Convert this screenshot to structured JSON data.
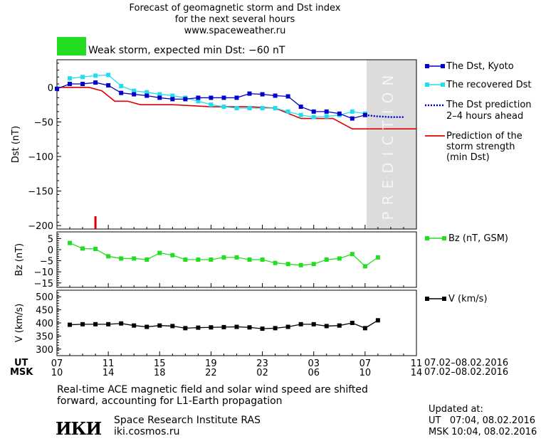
{
  "header": {
    "title_line1": "Forecast of geomagnetic storm and Dst index",
    "title_line2": "for the next several hours",
    "website": "www.spaceweather.ru",
    "storm_label": "Weak storm, expected min Dst: −60 nT",
    "storm_color": "#22dd22"
  },
  "legend": {
    "dst_kyoto": "The Dst, Kyoto",
    "dst_recovered": "The recovered Dst",
    "dst_prediction_1": "The Dst prediction",
    "dst_prediction_2": "2–4 hours ahead",
    "strength_1": "Prediction of the",
    "strength_2": "storm strength",
    "strength_3": "(min Dst)",
    "bz": "Bz (nT, GSM)",
    "v": "V (km/s)"
  },
  "prediction_word": "PREDICTION",
  "axes_footer": {
    "ut_label": "UT",
    "msk_label": "MSK",
    "ut_ticks": [
      "07",
      "11",
      "15",
      "19",
      "23",
      "03",
      "07",
      "11"
    ],
    "msk_ticks": [
      "10",
      "14",
      "18",
      "22",
      "02",
      "06",
      "10",
      "14"
    ],
    "date_range": "07.02–08.02.2016"
  },
  "footer": {
    "note_line1": "Real-time ACE magnetic field and solar wind speed are shifted",
    "note_line2": "forward, accounting for L1-Earth propagation",
    "institute": "Space Research Institute RAS",
    "institute_url": "iki.cosmos.ru",
    "logo_text": "ИКИ",
    "updated_label": "Updated at:",
    "updated_ut": "UT   07:04, 08.02.2016",
    "updated_msk": "MSK 10:04, 08.02.2016"
  },
  "colors": {
    "kyoto": "#0000cc",
    "recovered": "#22ddee",
    "prediction_dotted": "#0000cc",
    "strength_line": "#dd0000",
    "bz": "#22dd22",
    "v": "#000000",
    "prediction_zone": "#dcdcdc"
  },
  "chart_data": [
    {
      "type": "line",
      "ylabel": "Dst (nT)",
      "ylim": [
        -205,
        40
      ],
      "xlim_hours": [
        0,
        28
      ],
      "yticks": [
        0,
        -50,
        -100,
        -150,
        -200
      ],
      "prediction_zone_start_hours": 24,
      "series": [
        {
          "name": "The Dst, Kyoto",
          "x": [
            0,
            1,
            2,
            3,
            4,
            5,
            6,
            7,
            8,
            9,
            10,
            11,
            12,
            13,
            14,
            15,
            16,
            17,
            18,
            19,
            20,
            21,
            22,
            23,
            24
          ],
          "y": [
            -2,
            5,
            5,
            7,
            3,
            -8,
            -10,
            -12,
            -15,
            -17,
            -17,
            -15,
            -15,
            -15,
            -15,
            -9,
            -10,
            -12,
            -13,
            -28,
            -35,
            -35,
            -38,
            -45,
            -40
          ]
        },
        {
          "name": "The recovered Dst",
          "x": [
            1,
            2,
            3,
            4,
            5,
            6,
            7,
            8,
            9,
            10,
            11,
            12,
            13,
            14,
            15,
            16,
            17,
            18,
            19,
            20,
            21,
            22,
            23,
            24
          ],
          "y": [
            13,
            15,
            17,
            18,
            2,
            -5,
            -7,
            -10,
            -12,
            -15,
            -20,
            -25,
            -28,
            -30,
            -30,
            -30,
            -30,
            -35,
            -40,
            -43,
            -42,
            -40,
            -35,
            -38
          ]
        },
        {
          "name": "The Dst prediction 2–4 hours ahead",
          "x": [
            24,
            25,
            26,
            27
          ],
          "y": [
            -40,
            -42,
            -43,
            -43
          ]
        },
        {
          "name": "Prediction of the storm strength (min Dst)",
          "x": [
            0,
            2.5,
            3.5,
            4.5,
            5.5,
            6.5,
            9,
            12,
            15,
            17,
            19,
            21.5,
            23,
            28
          ],
          "y": [
            0,
            0,
            -5,
            -20,
            -20,
            -25,
            -25,
            -28,
            -28,
            -30,
            -45,
            -45,
            -60,
            -60
          ]
        }
      ],
      "marker_hours": 3
    },
    {
      "type": "line",
      "ylabel": "Bz (nT)",
      "ylim": [
        -17,
        8
      ],
      "yticks": [
        5,
        0,
        -5,
        -10,
        -15
      ],
      "series": [
        {
          "name": "Bz (nT, GSM)",
          "x": [
            1,
            2,
            3,
            4,
            5,
            6,
            7,
            8,
            9,
            10,
            11,
            12,
            13,
            14,
            15,
            16,
            17,
            18,
            19,
            20,
            21,
            22,
            23,
            24,
            25
          ],
          "y": [
            3,
            0.5,
            0.3,
            -3,
            -4,
            -4,
            -4.5,
            -1.5,
            -2.5,
            -4.5,
            -4.5,
            -4.5,
            -3.5,
            -3.5,
            -4.5,
            -4.5,
            -6,
            -6.5,
            -7,
            -6.5,
            -4.5,
            -4,
            -2,
            -7.5,
            -3.5
          ]
        }
      ]
    },
    {
      "type": "line",
      "ylabel": "V (km/s)",
      "ylim": [
        275,
        525
      ],
      "yticks": [
        500,
        450,
        400,
        350,
        300
      ],
      "series": [
        {
          "name": "V (km/s)",
          "x": [
            1,
            2,
            3,
            4,
            5,
            6,
            7,
            8,
            9,
            10,
            11,
            12,
            13,
            14,
            15,
            16,
            17,
            18,
            19,
            20,
            21,
            22,
            23,
            24,
            25
          ],
          "y": [
            393,
            395,
            395,
            395,
            398,
            390,
            385,
            390,
            388,
            380,
            382,
            383,
            384,
            385,
            383,
            378,
            380,
            385,
            395,
            395,
            388,
            390,
            400,
            380,
            410
          ]
        }
      ]
    }
  ]
}
